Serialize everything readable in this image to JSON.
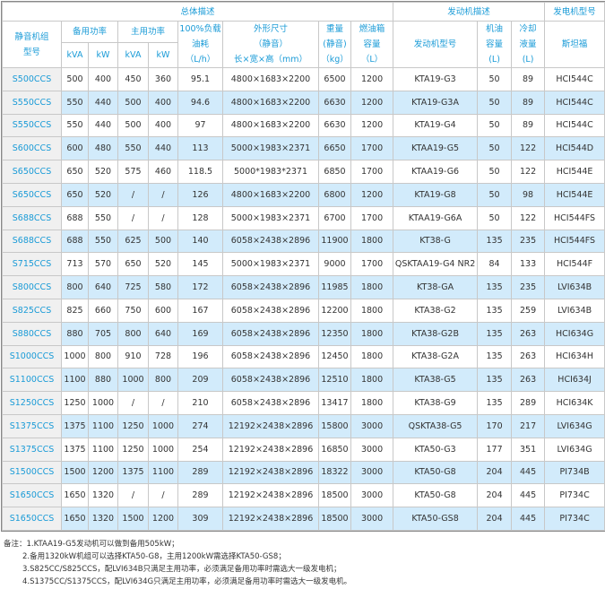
{
  "header": {
    "overall": "总体描述",
    "engine_desc": "发动机描述",
    "gen_model": "发电机型号",
    "model": [
      "静音机组",
      "型号"
    ],
    "standby": "备用功率",
    "prime": "主用功率",
    "kva": "kVA",
    "kw": "kW",
    "fuel": [
      "100%负载",
      "油耗",
      "（L/h）"
    ],
    "dims": [
      "外形尺寸",
      "（静音）",
      "长×宽×高（mm）"
    ],
    "weight": [
      "重量",
      "(静音)",
      "（kg）"
    ],
    "tank": [
      "燃油箱",
      "容量",
      "（L）"
    ],
    "engine_model": "发动机型号",
    "oil": [
      "机油",
      "容量",
      "(L)"
    ],
    "coolant": [
      "冷却",
      "液量",
      "(L)"
    ],
    "stamford": "斯坦福"
  },
  "rows": [
    [
      "S500CCS",
      "500",
      "400",
      "450",
      "360",
      "95.1",
      "4800×1683×2200",
      "6500",
      "1200",
      "KTA19-G3",
      "50",
      "89",
      "HCI544C"
    ],
    [
      "S550CCS",
      "550",
      "440",
      "500",
      "400",
      "94.6",
      "4800×1683×2200",
      "6630",
      "1200",
      "KTA19-G3A",
      "50",
      "89",
      "HCI544C"
    ],
    [
      "S550CCS",
      "550",
      "440",
      "500",
      "400",
      "97",
      "4800×1683×2200",
      "6630",
      "1200",
      "KTA19-G4",
      "50",
      "89",
      "HCI544C"
    ],
    [
      "S600CCS",
      "600",
      "480",
      "550",
      "440",
      "113",
      "5000×1983×2371",
      "6650",
      "1700",
      "KTAA19-G5",
      "50",
      "122",
      "HCI544D"
    ],
    [
      "S650CCS",
      "650",
      "520",
      "575",
      "460",
      "118.5",
      "5000*1983*2371",
      "6850",
      "1700",
      "KTAA19-G6",
      "50",
      "122",
      "HCI544E"
    ],
    [
      "S650CCS",
      "650",
      "520",
      "/",
      "/",
      "126",
      "4800×1683×2200",
      "6800",
      "1200",
      "KTA19-G8",
      "50",
      "98",
      "HCI544E"
    ],
    [
      "S688CCS",
      "688",
      "550",
      "/",
      "/",
      "128",
      "5000×1983×2371",
      "6700",
      "1700",
      "KTAA19-G6A",
      "50",
      "122",
      "HCI544FS"
    ],
    [
      "S688CCS",
      "688",
      "550",
      "625",
      "500",
      "140",
      "6058×2438×2896",
      "11900",
      "1800",
      "KT38-G",
      "135",
      "235",
      "HCI544FS"
    ],
    [
      "S715CCS",
      "713",
      "570",
      "650",
      "520",
      "145",
      "5000×1983×2371",
      "9000",
      "1700",
      "QSKTAA19-G4 NR2",
      "84",
      "133",
      "HCI544F"
    ],
    [
      "S800CCS",
      "800",
      "640",
      "725",
      "580",
      "172",
      "6058×2438×2896",
      "11985",
      "1800",
      "KT38-GA",
      "135",
      "235",
      "LVI634B"
    ],
    [
      "S825CCS",
      "825",
      "660",
      "750",
      "600",
      "167",
      "6058×2438×2896",
      "12200",
      "1800",
      "KTA38-G2",
      "135",
      "259",
      "LVI634B"
    ],
    [
      "S880CCS",
      "880",
      "705",
      "800",
      "640",
      "169",
      "6058×2438×2896",
      "12350",
      "1800",
      "KTA38-G2B",
      "135",
      "263",
      "HCI634G"
    ],
    [
      "S1000CCS",
      "1000",
      "800",
      "910",
      "728",
      "196",
      "6058×2438×2896",
      "12450",
      "1800",
      "KTA38-G2A",
      "135",
      "263",
      "HCI634H"
    ],
    [
      "S1100CCS",
      "1100",
      "880",
      "1000",
      "800",
      "209",
      "6058×2438×2896",
      "12510",
      "1800",
      "KTA38-G5",
      "135",
      "263",
      "HCI634J"
    ],
    [
      "S1250CCS",
      "1250",
      "1000",
      "/",
      "/",
      "210",
      "6058×2438×2896",
      "13417",
      "1800",
      "KTA38-G9",
      "135",
      "289",
      "HCI634K"
    ],
    [
      "S1375CCS",
      "1375",
      "1100",
      "1250",
      "1000",
      "274",
      "12192×2438×2896",
      "15800",
      "3000",
      "QSKTA38-G5",
      "170",
      "217",
      "LVI634G"
    ],
    [
      "S1375CCS",
      "1375",
      "1100",
      "1250",
      "1000",
      "254",
      "12192×2438×2896",
      "16850",
      "3000",
      "KTA50-G3",
      "177",
      "351",
      "LVI634G"
    ],
    [
      "S1500CCS",
      "1500",
      "1200",
      "1375",
      "1100",
      "289",
      "12192×2438×2896",
      "18322",
      "3000",
      "KTA50-G8",
      "204",
      "445",
      "PI734B"
    ],
    [
      "S1650CCS",
      "1650",
      "1320",
      "/",
      "/",
      "289",
      "12192×2438×2896",
      "18500",
      "3000",
      "KTA50-G8",
      "204",
      "445",
      "PI734C"
    ],
    [
      "S1650CCS",
      "1650",
      "1320",
      "1500",
      "1200",
      "309",
      "12192×2438×2896",
      "18500",
      "3000",
      "KTA50-GS8",
      "204",
      "445",
      "PI734C"
    ]
  ],
  "notes": [
    "备注：1.KTAA19-G5发动机可以做到备用505kW；",
    "2.备用1320kW机组可以选择KTA50-G8，主用1200kW需选择KTA50-GS8；",
    "3.S825CC/S825CCS，配LVI634B只满足主用功率，必须满足备用功率时需选大一级发电机；",
    "4.S1375CC/S1375CCS，配LVI634G只满足主用功率，必须满足备用功率时需选大一级发电机。"
  ],
  "colors": {
    "header_text": "#1a9bd7",
    "alt_row": "#d2ebfb",
    "model_cell": "#f0f0f0"
  }
}
